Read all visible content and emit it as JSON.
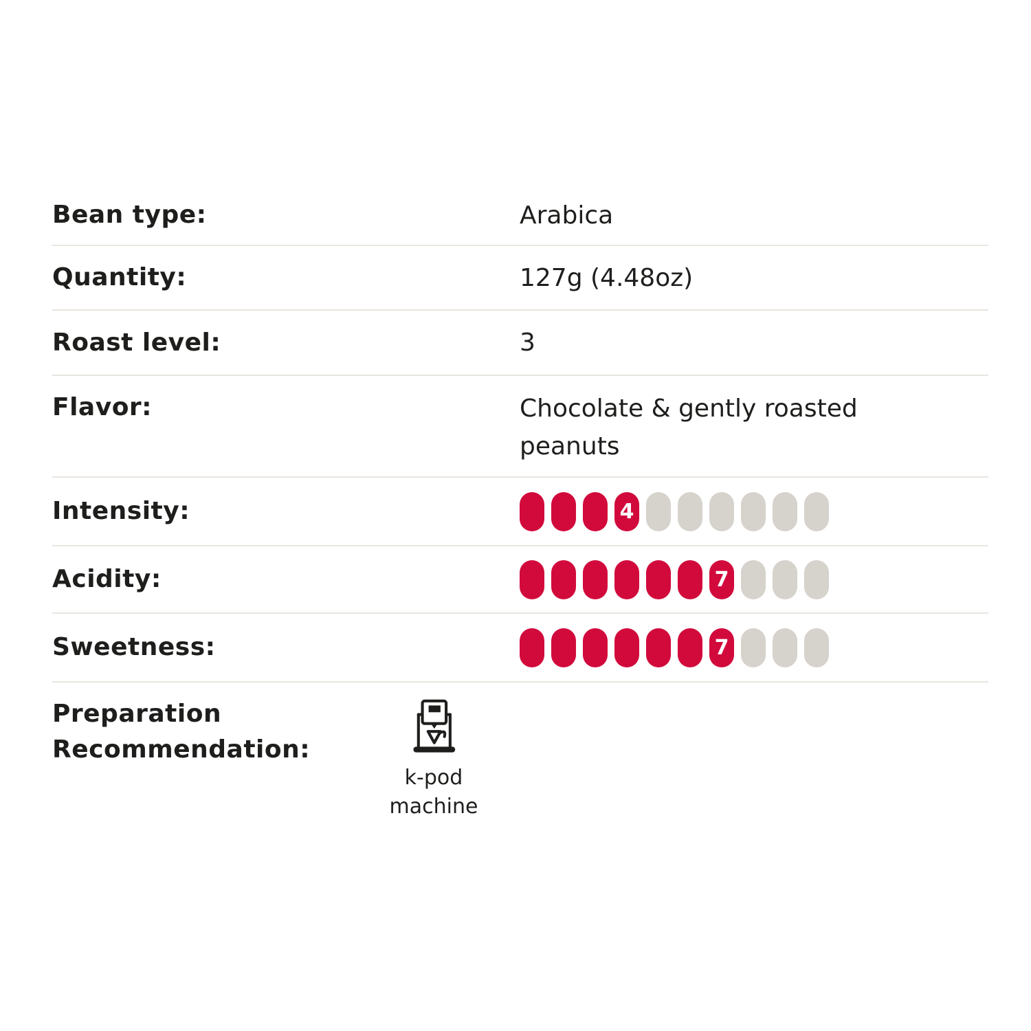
{
  "spec_table": {
    "colors": {
      "rating_filled": "#d20a3c",
      "rating_empty": "#d6d2cc",
      "divider": "#e9e5df",
      "text": "#1e1e1c"
    },
    "rows": [
      {
        "id": "bean-type",
        "label": "Bean type:",
        "type": "text",
        "value": "Arabica"
      },
      {
        "id": "quantity",
        "label": "Quantity:",
        "type": "text",
        "value": "127g (4.48oz)"
      },
      {
        "id": "roast-level",
        "label": "Roast level:",
        "type": "text",
        "value": "3"
      },
      {
        "id": "flavor",
        "label": "Flavor:",
        "type": "text",
        "value": "Chocolate & gently roasted peanuts"
      },
      {
        "id": "intensity",
        "label": "Intensity:",
        "type": "rating",
        "value": 4,
        "max": 10
      },
      {
        "id": "acidity",
        "label": "Acidity:",
        "type": "rating",
        "value": 7,
        "max": 10
      },
      {
        "id": "sweetness",
        "label": "Sweetness:",
        "type": "rating",
        "value": 7,
        "max": 10
      },
      {
        "id": "preparation",
        "label": "Preparation Recommendation:",
        "type": "icon",
        "icon": "k-pod-machine-icon",
        "caption": "k-pod machine",
        "caption_lines": [
          "k-pod",
          "machine"
        ]
      }
    ]
  }
}
